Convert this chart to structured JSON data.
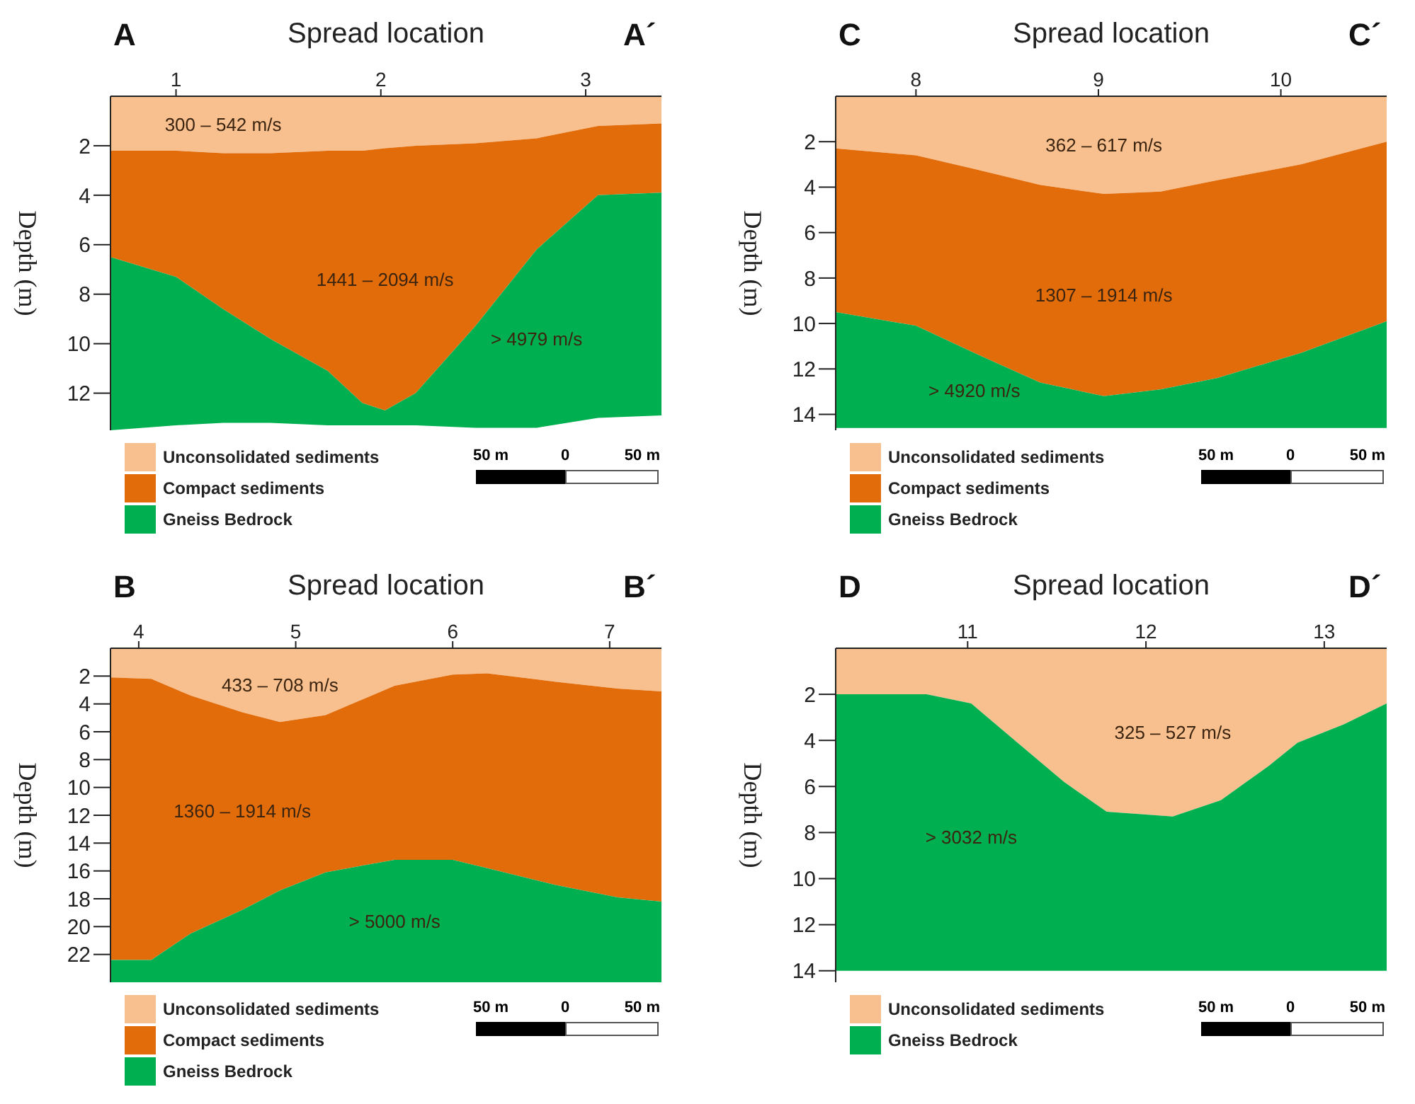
{
  "chart_data": [
    {
      "type": "area",
      "stacked": true,
      "title": "A",
      "xlabel": "Spread location",
      "ylabel": "Depth (m)",
      "legend": "bottom left",
      "x": [
        0.68,
        1.0,
        1.23,
        1.46,
        1.74,
        1.91,
        2.02,
        2.17,
        2.46,
        2.76,
        3.06,
        3.37
      ],
      "series": [
        {
          "name": "Unconsolidated sediments",
          "color": "#f9c08f",
          "values": [
            2.2,
            2.2,
            2.3,
            2.3,
            2.2,
            2.2,
            2.1,
            2.0,
            1.9,
            1.7,
            1.2,
            1.1
          ]
        },
        {
          "name": "Compact sediments",
          "color": "#e36c0a",
          "values": [
            4.3,
            5.1,
            6.3,
            7.5,
            8.9,
            10.2,
            10.6,
            10.0,
            7.4,
            4.5,
            2.8,
            2.8
          ]
        },
        {
          "name": "Gneiss Bedrock",
          "color": "#00b050",
          "values": [
            7.0,
            6.0,
            4.6,
            3.4,
            2.2,
            0.9,
            0.6,
            1.3,
            4.1,
            7.2,
            9.0,
            9.0
          ]
        }
      ],
      "xlim": [
        0.68,
        3.37
      ],
      "xticks": [
        1,
        2,
        3
      ],
      "ylim": [
        13.5,
        0
      ],
      "yticks": [
        2,
        4,
        6,
        8,
        10,
        12
      ],
      "annotations": [
        "A´",
        "50 m",
        "0",
        "50 m",
        "300 – 542 m/s",
        "1441 – 2094 m/s",
        "> 4979 m/s"
      ]
    },
    {
      "type": "area",
      "stacked": true,
      "title": "C",
      "xlabel": "Spread location",
      "ylabel": "Depth (m)",
      "legend": "bottom left",
      "x": [
        7.56,
        8.0,
        8.32,
        8.68,
        9.03,
        9.34,
        9.65,
        10.11,
        10.58
      ],
      "series": [
        {
          "name": "Unconsolidated sediments",
          "color": "#f9c08f",
          "values": [
            2.3,
            2.6,
            3.2,
            3.9,
            4.3,
            4.2,
            3.7,
            3.0,
            2.0
          ]
        },
        {
          "name": "Compact sediments",
          "color": "#e36c0a",
          "values": [
            7.2,
            7.5,
            8.1,
            8.7,
            8.9,
            8.7,
            8.7,
            8.3,
            7.9
          ]
        },
        {
          "name": "Gneiss Bedrock",
          "color": "#00b050",
          "values": [
            5.1,
            4.5,
            3.3,
            2.0,
            1.4,
            1.7,
            2.2,
            3.3,
            4.7
          ]
        }
      ],
      "xlim": [
        7.56,
        10.58
      ],
      "xticks": [
        8,
        9,
        10
      ],
      "ylim": [
        14.7,
        0
      ],
      "yticks": [
        2,
        4,
        6,
        8,
        10,
        12,
        14
      ],
      "annotations": [
        "C´",
        "50 m",
        "0",
        "50 m",
        "362 – 617 m/s",
        "1307 – 1914 m/s",
        "> 4920 m/s"
      ]
    },
    {
      "type": "area",
      "stacked": true,
      "title": "B",
      "xlabel": "Spread location",
      "ylabel": "Depth (m)",
      "legend": "bottom left",
      "x": [
        3.82,
        4.08,
        4.33,
        4.66,
        4.9,
        5.19,
        5.63,
        6.0,
        6.22,
        6.65,
        7.05,
        7.33
      ],
      "series": [
        {
          "name": "Unconsolidated sediments",
          "color": "#f9c08f",
          "values": [
            2.1,
            2.2,
            3.4,
            4.6,
            5.3,
            4.8,
            2.7,
            1.9,
            1.8,
            2.4,
            2.9,
            3.1
          ]
        },
        {
          "name": "Compact sediments",
          "color": "#e36c0a",
          "values": [
            20.3,
            20.2,
            17.1,
            14.2,
            12.1,
            11.3,
            12.5,
            13.3,
            14.0,
            14.6,
            15.0,
            15.1
          ]
        },
        {
          "name": "Gneiss Bedrock",
          "color": "#00b050",
          "values": [
            1.6,
            1.6,
            3.5,
            5.2,
            6.6,
            7.9,
            8.8,
            8.8,
            8.2,
            7.0,
            6.1,
            5.8
          ]
        }
      ],
      "xlim": [
        3.82,
        7.33
      ],
      "xticks": [
        4,
        5,
        6,
        7
      ],
      "ylim": [
        24,
        0
      ],
      "yticks": [
        2,
        4,
        6,
        8,
        10,
        12,
        14,
        16,
        18,
        20,
        22
      ],
      "annotations": [
        "B´",
        "50 m",
        "0",
        "50 m",
        "433 – 708 m/s",
        "1360 – 1914 m/s",
        "> 5000 m/s"
      ]
    },
    {
      "type": "area",
      "stacked": true,
      "title": "D",
      "xlabel": "Spread location",
      "ylabel": "Depth (m)",
      "legend": "bottom left",
      "x": [
        10.26,
        10.77,
        11.02,
        11.28,
        11.54,
        11.78,
        11.96,
        12.15,
        12.42,
        12.69,
        12.85,
        13.11,
        13.35
      ],
      "series": [
        {
          "name": "Unconsolidated sediments",
          "color": "#f9c08f",
          "values": [
            2.0,
            2.0,
            2.4,
            4.1,
            5.8,
            7.1,
            7.2,
            7.3,
            6.6,
            5.1,
            4.1,
            3.3,
            2.4
          ]
        },
        {
          "name": "Gneiss Bedrock",
          "color": "#00b050",
          "values": [
            12.0,
            12.0,
            11.6,
            9.9,
            8.2,
            6.9,
            6.8,
            6.7,
            7.4,
            8.9,
            9.9,
            10.7,
            11.6
          ]
        }
      ],
      "xlim": [
        10.26,
        13.35
      ],
      "xticks": [
        11,
        12,
        13
      ],
      "ylim": [
        14.5,
        0
      ],
      "yticks": [
        2,
        4,
        6,
        8,
        10,
        12,
        14
      ],
      "annotations": [
        "D´",
        "50 m",
        "0",
        "50 m",
        "325 – 527 m/s",
        "> 3032 m/s"
      ]
    }
  ]
}
